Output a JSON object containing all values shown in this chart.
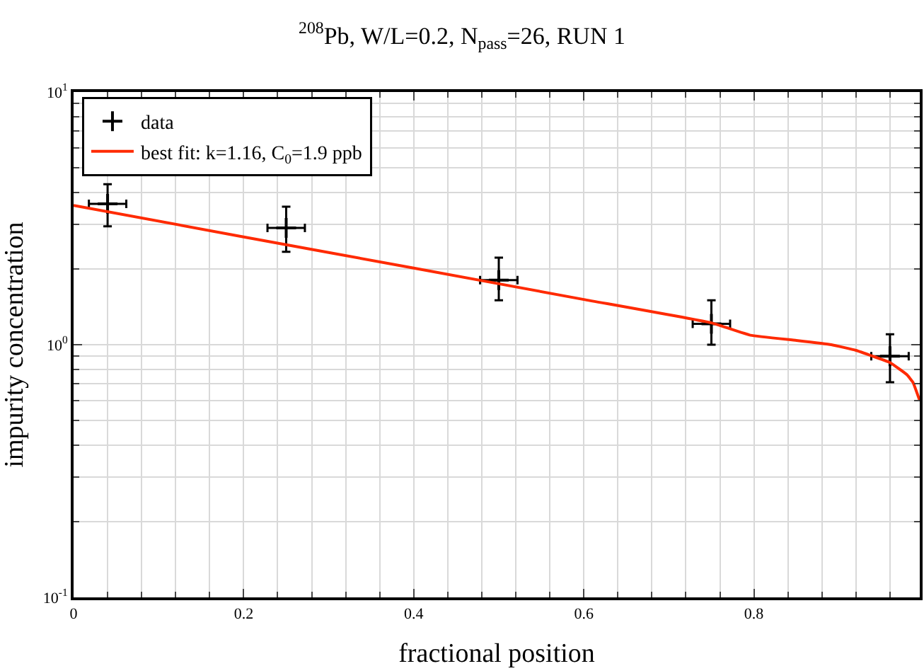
{
  "chart_data": {
    "type": "scatter",
    "title": "$^{208}$Pb, W/L=0.2, N$_{pass}$=26, RUN 1",
    "xlabel": "fractional position",
    "ylabel": "impurity concentration",
    "series": [
      {
        "name": "data",
        "color": "#000000",
        "marker": "cross",
        "x": [
          0.04,
          0.25,
          0.5,
          0.75,
          0.96
        ],
        "values": [
          3.61,
          2.9,
          1.8,
          1.21,
          0.9
        ],
        "errors": [
          [
            2.94,
            4.32
          ],
          [
            2.33,
            3.52
          ],
          [
            1.5,
            2.21
          ],
          [
            1.0,
            1.5
          ],
          [
            0.71,
            1.1
          ]
        ],
        "xerrors": [
          0.022,
          0.022,
          0.022,
          0.022,
          0.022
        ]
      },
      {
        "name": "best fit: k=1.16, C$_{0}$=1.9 ppb",
        "type": "line",
        "color": "#ff2a00",
        "line_style": "solid",
        "x": [
          0,
          0.2,
          0.4,
          0.6,
          0.75,
          0.796,
          0.85,
          0.891,
          0.92,
          0.94,
          0.96,
          0.969,
          0.98,
          0.987,
          0.995
        ],
        "values": [
          3.56,
          2.67,
          2.01,
          1.51,
          1.22,
          1.09,
          1.04,
          1.0,
          0.95,
          0.9,
          0.85,
          0.81,
          0.76,
          0.71,
          0.6
        ]
      }
    ],
    "log": "y",
    "xlim": [
      0,
      0.995
    ],
    "ylim": [
      0.1,
      10
    ],
    "xticks": [
      0,
      0.2,
      0.4,
      0.6,
      0.8
    ],
    "yticks": [
      {
        "value": 0.1,
        "label": "10$^{-1}$"
      },
      {
        "value": 1,
        "label": "10$^{0}$"
      },
      {
        "value": 10,
        "label": "10$^{1}$"
      }
    ],
    "grid": true,
    "legend": "top left"
  }
}
